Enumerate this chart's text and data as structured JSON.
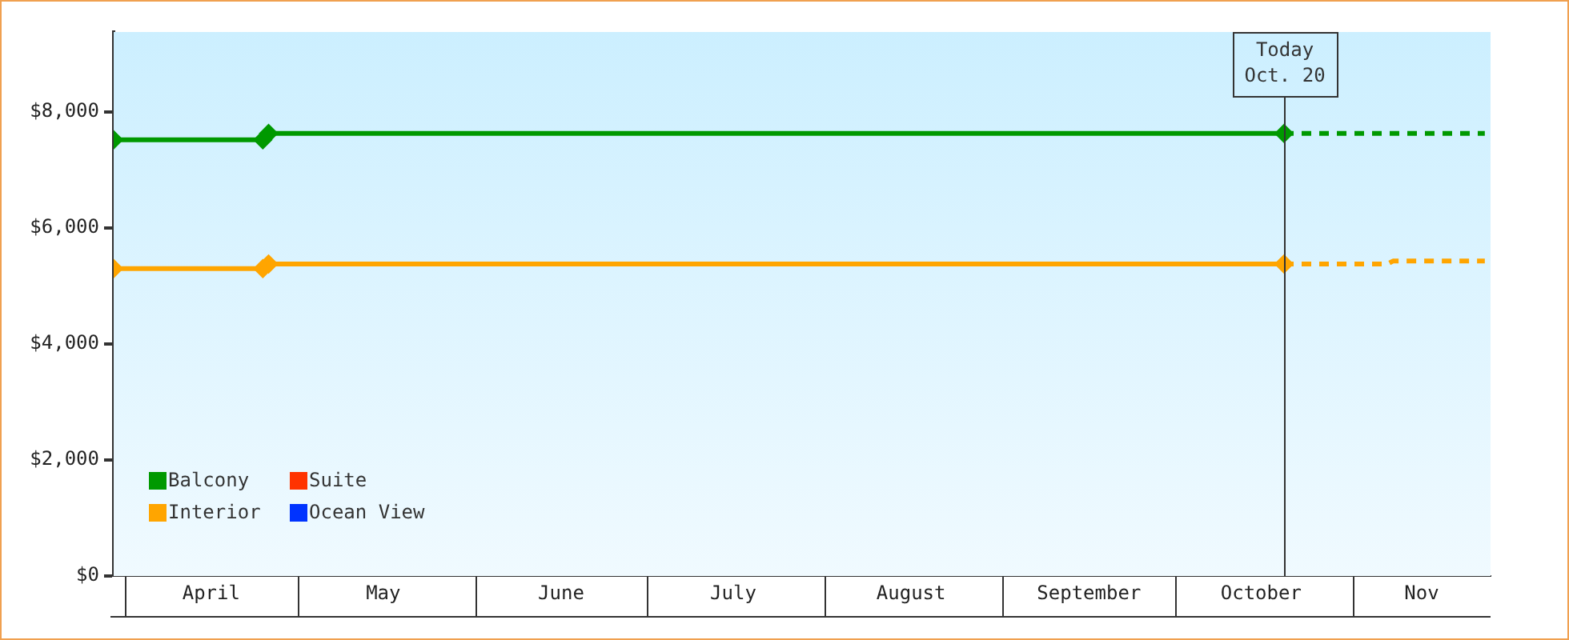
{
  "chart_data": {
    "type": "line",
    "xlim": [
      "--03-30",
      "--11-25"
    ],
    "xticks": [
      {
        "value": "--04-16",
        "label": "April"
      },
      {
        "value": "--05-16",
        "label": "May"
      },
      {
        "value": "--06-16",
        "label": "June"
      },
      {
        "value": "--07-16",
        "label": "July"
      },
      {
        "value": "--08-16",
        "label": "August"
      },
      {
        "value": "--09-16",
        "label": "September"
      },
      {
        "value": "--10-16",
        "label": "October"
      },
      {
        "value": "--11-13",
        "label": "Nov"
      }
    ],
    "ylim": [
      0,
      9380
    ],
    "yticks": [
      {
        "value": 0,
        "label": "$0"
      },
      {
        "value": 2000,
        "label": "$2,000"
      },
      {
        "value": 4000,
        "label": "$4,000"
      },
      {
        "value": 6000,
        "label": "$6,000"
      },
      {
        "value": 8000,
        "label": "$8,000"
      }
    ],
    "legend": "bottom left",
    "ref_lines": [
      {
        "axis": "x",
        "value": "--10-20",
        "label": "Today\nOct. 20",
        "color": "#333333"
      }
    ],
    "series": [
      {
        "name": "Balcony",
        "color": "#009900",
        "marker": "diamond",
        "line_style": "solid",
        "x": [
          "--03-30",
          "--04-25",
          "--04-26",
          "--10-20"
        ],
        "values": [
          7520,
          7520,
          7630,
          7630
        ]
      },
      {
        "name": "Suite",
        "color": "#ff3300",
        "marker": "diamond",
        "line_style": "solid"
      },
      {
        "name": "Interior",
        "color": "#ffa500",
        "marker": "diamond",
        "line_style": "solid",
        "x": [
          "--03-30",
          "--04-25",
          "--04-26",
          "--10-20"
        ],
        "values": [
          5300,
          5300,
          5380,
          5380
        ]
      },
      {
        "name": "Ocean View",
        "color": "#0033ff",
        "marker": "diamond",
        "line_style": "solid"
      },
      {
        "color": "#009900",
        "marker": "none",
        "line_style": "dotted",
        "x": [
          "--10-20",
          "--11-24"
        ],
        "values": [
          7630,
          7630
        ]
      },
      {
        "color": "#ffa500",
        "marker": "none",
        "line_style": "dotted",
        "x": [
          "--10-20",
          "--11-07",
          "--11-08",
          "--11-24"
        ],
        "values": [
          5380,
          5380,
          5430,
          5430
        ]
      }
    ]
  }
}
